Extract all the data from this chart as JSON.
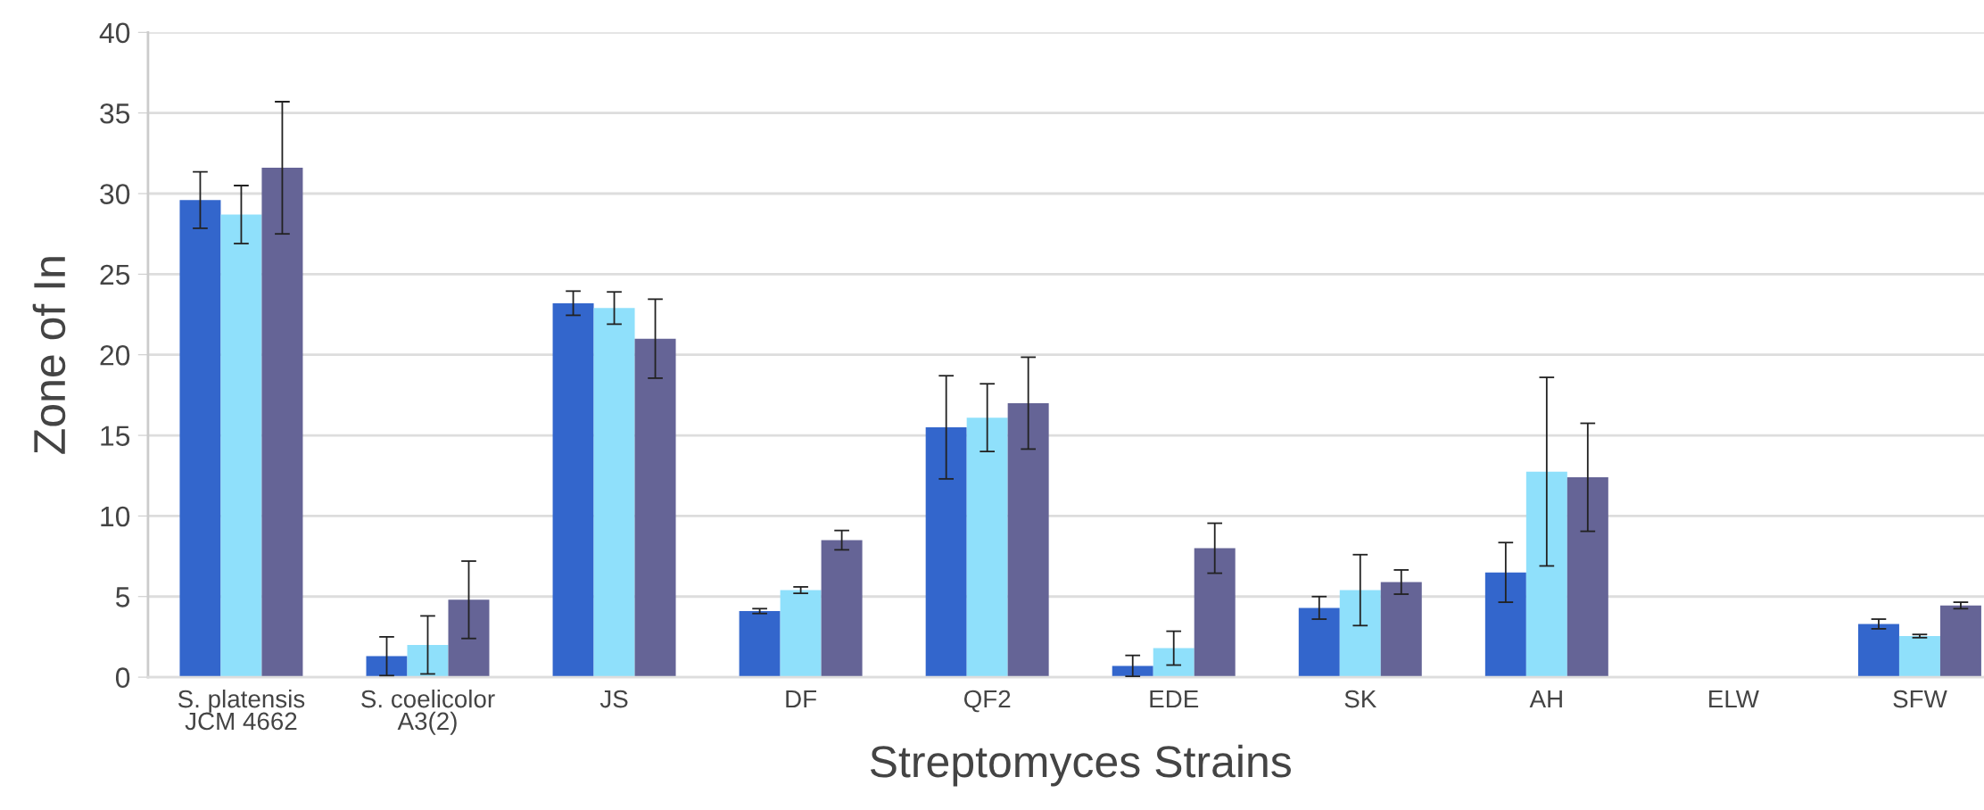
{
  "chart_data": {
    "type": "bar",
    "xlabel": "Streptomyces Strains",
    "ylabel": "Zone of In",
    "categories": [
      "S. platensis\nJCM 4662",
      "S. coelicolor\nA3(2)",
      "JS",
      "DF",
      "QF2",
      "EDE",
      "SK",
      "AH",
      "ELW",
      "SFW"
    ],
    "series": [
      {
        "color": "#3366cc",
        "values": [
          29.6,
          1.3,
          23.2,
          4.1,
          15.5,
          0.7,
          4.3,
          6.5,
          null,
          3.3
        ],
        "errors": [
          1.75,
          1.2,
          0.75,
          0.15,
          3.2,
          0.65,
          0.7,
          1.85,
          null,
          0.3
        ]
      },
      {
        "color": "#8fe0fb",
        "values": [
          28.7,
          2.0,
          22.9,
          5.4,
          16.1,
          1.8,
          5.4,
          12.75,
          null,
          2.55
        ],
        "errors": [
          1.8,
          1.8,
          1.0,
          0.2,
          2.1,
          1.05,
          2.2,
          5.85,
          null,
          0.1
        ]
      },
      {
        "color": "#656496",
        "values": [
          31.6,
          4.8,
          21.0,
          8.5,
          17.0,
          8.0,
          5.9,
          12.4,
          null,
          4.45
        ],
        "errors": [
          4.1,
          2.4,
          2.45,
          0.6,
          2.85,
          1.55,
          0.75,
          3.35,
          null,
          0.2
        ]
      }
    ],
    "ylim": [
      0,
      40
    ],
    "yticks": [
      0,
      5,
      10,
      15,
      20,
      25,
      30,
      35,
      40
    ],
    "grid": "y",
    "legend": false
  }
}
